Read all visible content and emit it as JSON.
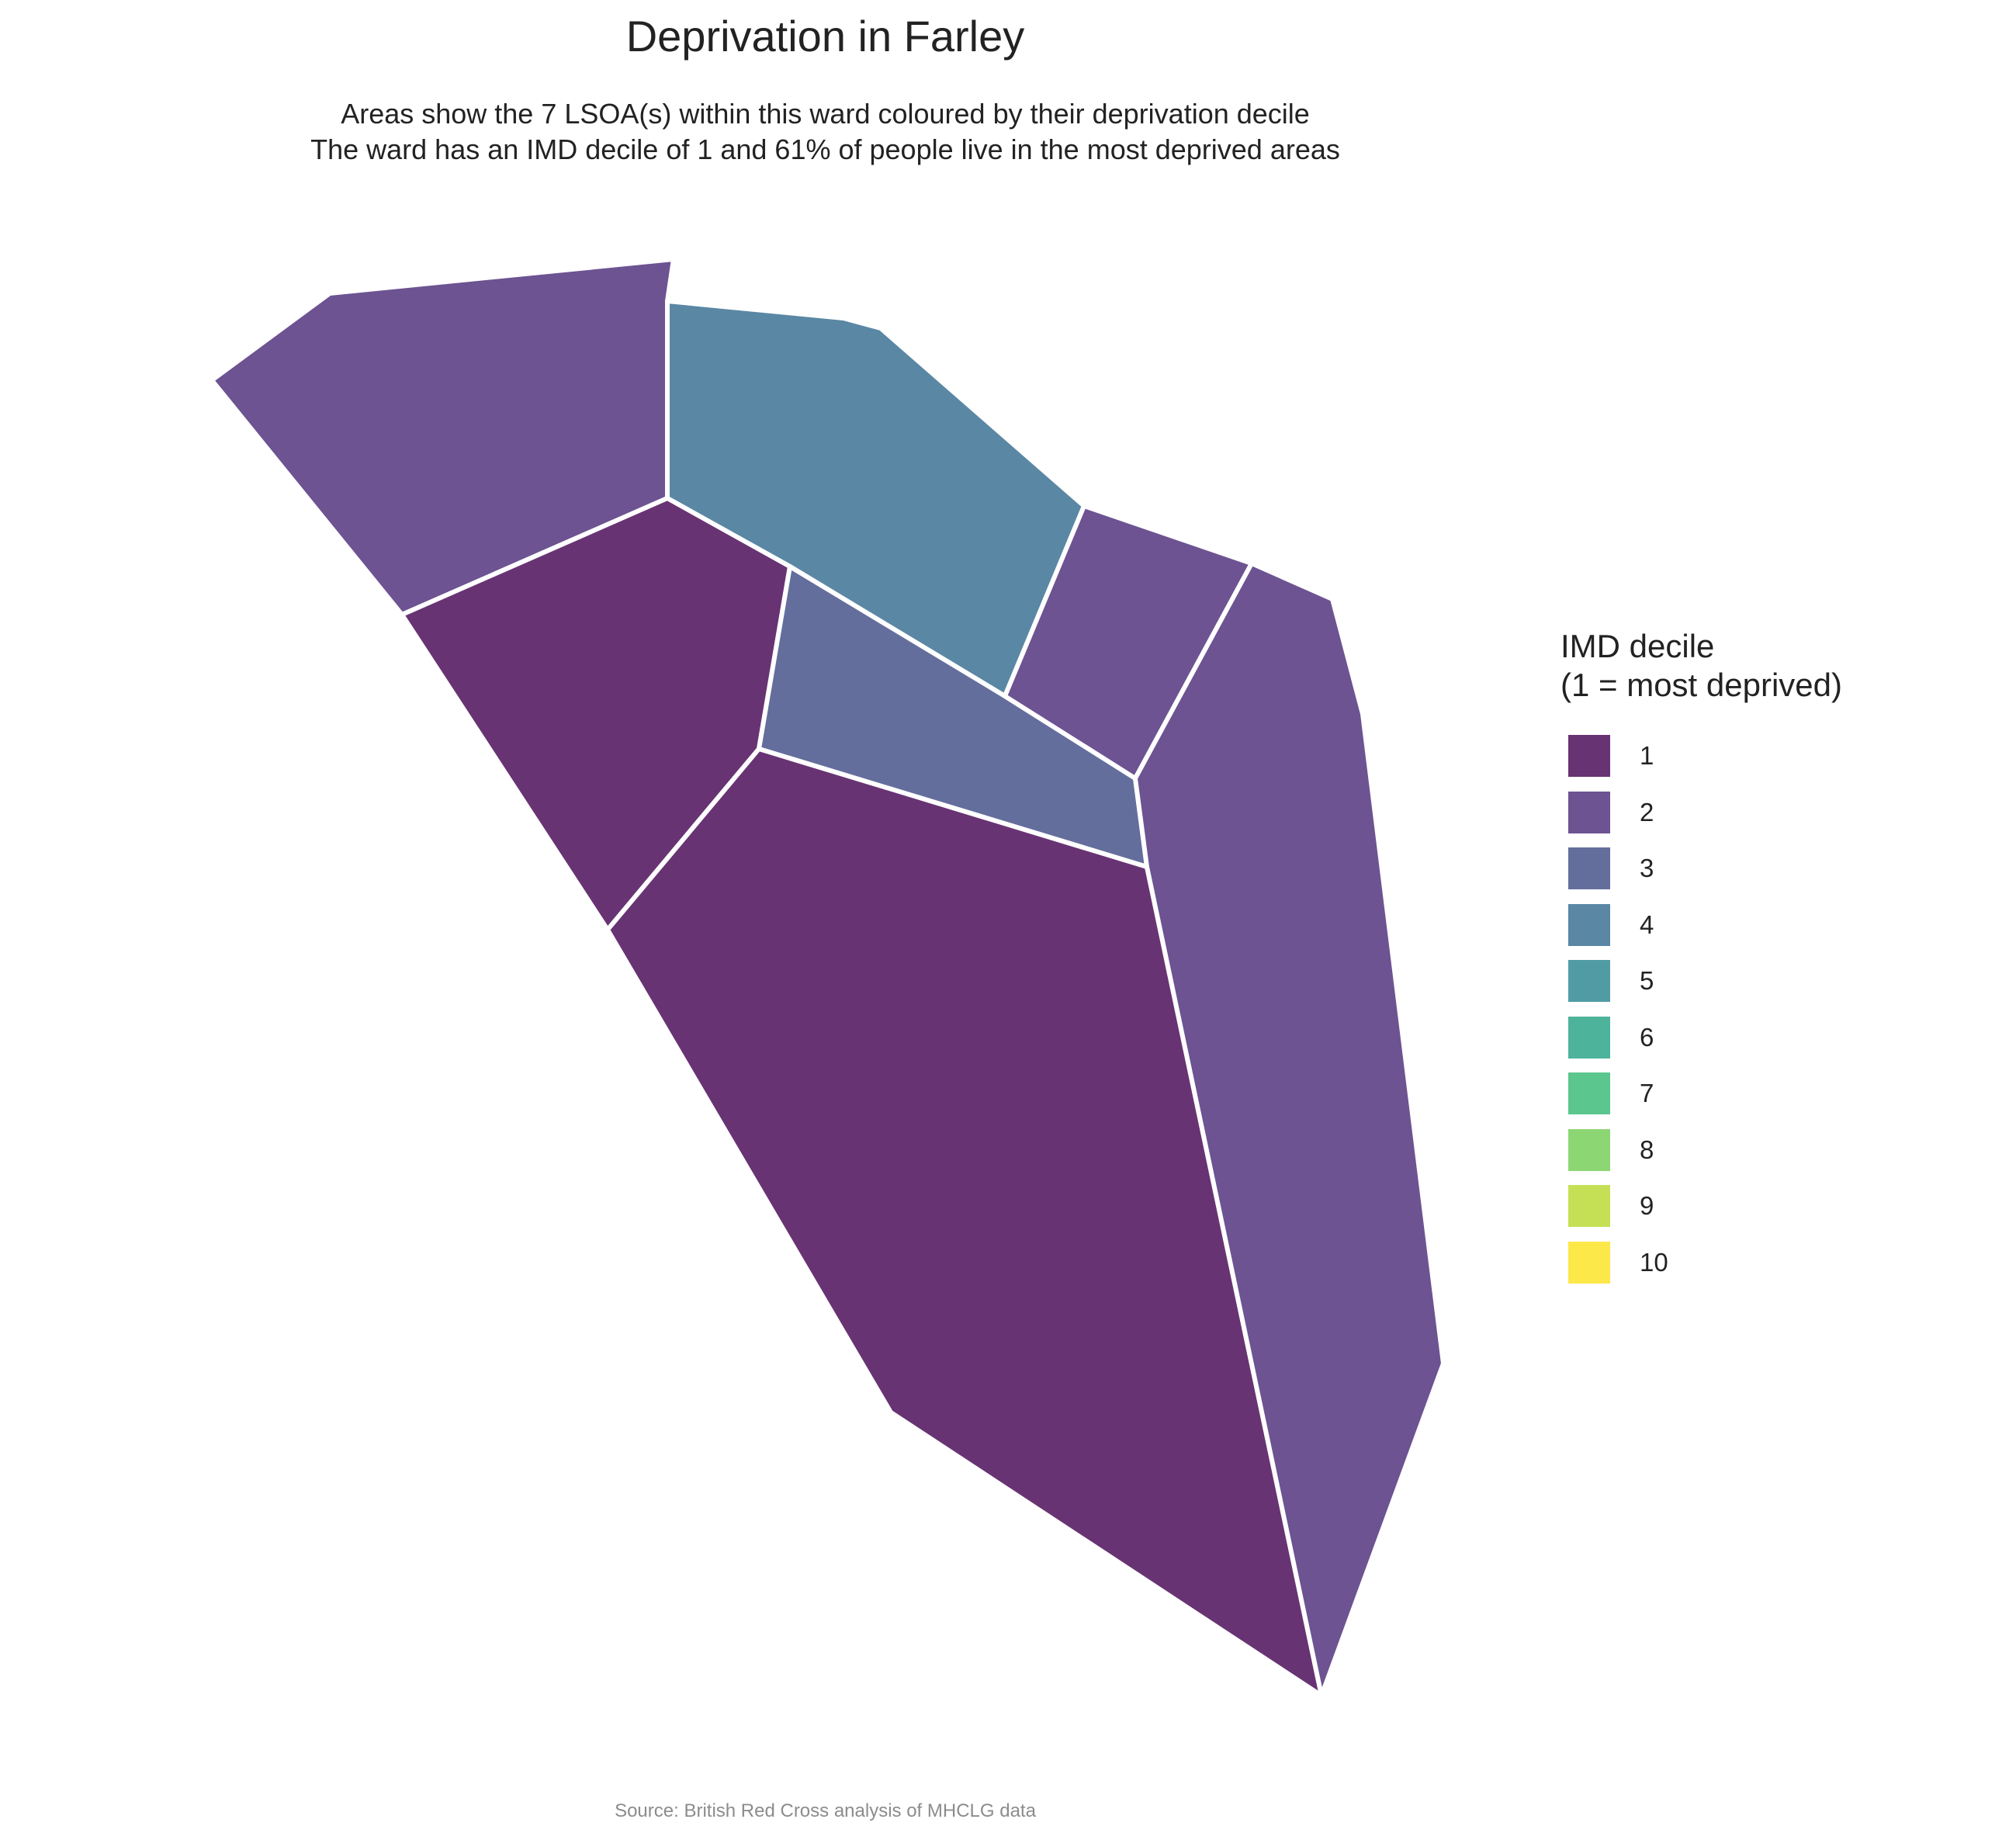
{
  "title": "Deprivation in Farley",
  "subtitle": {
    "line1": "Areas show the 7 LSOA(s) within this ward coloured by their deprivation decile",
    "line2": "The ward has an IMD decile of 1 and 61% of people live in the most deprived areas"
  },
  "legend": {
    "title_line1": "IMD decile",
    "title_line2": "(1 = most deprived)",
    "items": [
      {
        "label": "1",
        "color": "#683373"
      },
      {
        "label": "2",
        "color": "#6d5392"
      },
      {
        "label": "3",
        "color": "#646e9c"
      },
      {
        "label": "4",
        "color": "#5a87a4"
      },
      {
        "label": "5",
        "color": "#519ca4"
      },
      {
        "label": "6",
        "color": "#4db39a"
      },
      {
        "label": "7",
        "color": "#5bc68e"
      },
      {
        "label": "8",
        "color": "#8dd674"
      },
      {
        "label": "9",
        "color": "#c5e055"
      },
      {
        "label": "10",
        "color": "#fde84a"
      }
    ]
  },
  "areas": [
    {
      "id": "lsoa-north-west",
      "decile": 2
    },
    {
      "id": "lsoa-north",
      "decile": 4
    },
    {
      "id": "lsoa-west",
      "decile": 1
    },
    {
      "id": "lsoa-centre",
      "decile": 3
    },
    {
      "id": "lsoa-north-east",
      "decile": 2
    },
    {
      "id": "lsoa-south",
      "decile": 1
    },
    {
      "id": "lsoa-east",
      "decile": 2
    }
  ],
  "source": "Source: British Red Cross analysis of MHCLG data"
}
